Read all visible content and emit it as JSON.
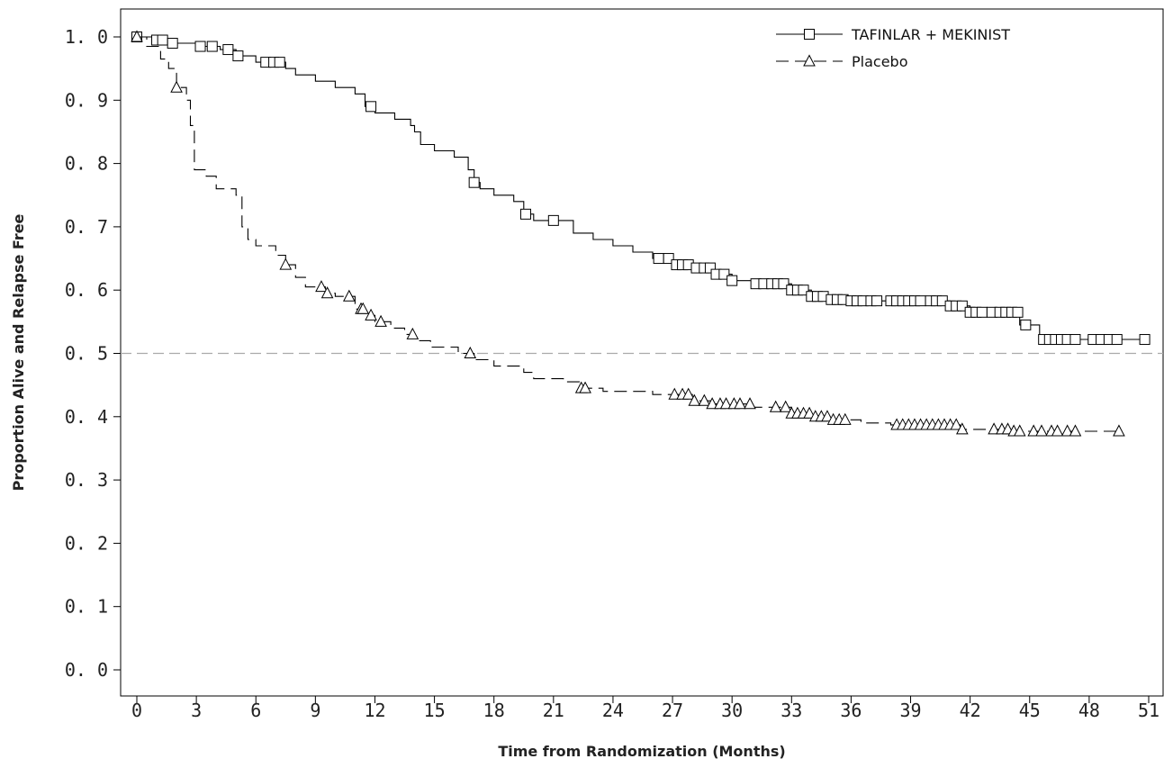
{
  "chart_data": {
    "type": "line",
    "subtype": "kaplan-meier",
    "title": "",
    "xlabel": "Time from Randomization (Months)",
    "ylabel": "Proportion Alive and Relapse Free",
    "xlim": [
      0,
      51
    ],
    "ylim": [
      0.0,
      1.0
    ],
    "x_ticks": [
      0,
      3,
      6,
      9,
      12,
      15,
      18,
      21,
      24,
      27,
      30,
      33,
      36,
      39,
      42,
      45,
      48,
      51
    ],
    "x_tick_labels": [
      "0",
      "3",
      "6",
      "9",
      "12",
      "15",
      "18",
      "21",
      "24",
      "27",
      "30",
      "33",
      "36",
      "39",
      "42",
      "45",
      "48",
      "51"
    ],
    "y_ticks": [
      0.0,
      0.1,
      0.2,
      0.3,
      0.4,
      0.5,
      0.6,
      0.7,
      0.8,
      0.9,
      1.0
    ],
    "y_tick_labels": [
      "0. 0",
      "0. 1",
      "0. 2",
      "0. 3",
      "0. 4",
      "0. 5",
      "0. 6",
      "0. 7",
      "0. 8",
      "0. 9",
      "1. 0"
    ],
    "grid": false,
    "reference_line": {
      "y": 0.5,
      "style": "dashed",
      "color": "#aaaaaa"
    },
    "legend_position": "top-right",
    "series": [
      {
        "name": "TAFINLAR + MEKINIST",
        "line_style": "solid",
        "marker": "square",
        "color": "#000000",
        "steps": [
          [
            0,
            1.0
          ],
          [
            0.8,
            0.995
          ],
          [
            1.8,
            0.99
          ],
          [
            3,
            0.985
          ],
          [
            4.2,
            0.98
          ],
          [
            5,
            0.97
          ],
          [
            6,
            0.96
          ],
          [
            7.5,
            0.95
          ],
          [
            8,
            0.94
          ],
          [
            9,
            0.93
          ],
          [
            10,
            0.92
          ],
          [
            11,
            0.91
          ],
          [
            11.5,
            0.89
          ],
          [
            12,
            0.88
          ],
          [
            13,
            0.87
          ],
          [
            13.8,
            0.86
          ],
          [
            14,
            0.85
          ],
          [
            14.3,
            0.83
          ],
          [
            15,
            0.82
          ],
          [
            16,
            0.81
          ],
          [
            16.7,
            0.79
          ],
          [
            17,
            0.77
          ],
          [
            17.3,
            0.76
          ],
          [
            18,
            0.75
          ],
          [
            19,
            0.74
          ],
          [
            19.5,
            0.72
          ],
          [
            20,
            0.71
          ],
          [
            21,
            0.71
          ],
          [
            22,
            0.69
          ],
          [
            23,
            0.68
          ],
          [
            24,
            0.67
          ],
          [
            25,
            0.66
          ],
          [
            26,
            0.65
          ],
          [
            27,
            0.64
          ],
          [
            28,
            0.635
          ],
          [
            29,
            0.625
          ],
          [
            30,
            0.615
          ],
          [
            31,
            0.61
          ],
          [
            33,
            0.6
          ],
          [
            34,
            0.59
          ],
          [
            35,
            0.585
          ],
          [
            36,
            0.583
          ],
          [
            41,
            0.575
          ],
          [
            42,
            0.565
          ],
          [
            44.3,
            0.565
          ],
          [
            44.5,
            0.545
          ],
          [
            45.5,
            0.522
          ],
          [
            51,
            0.522
          ]
        ],
        "censored": [
          0,
          1,
          1.3,
          1.8,
          3.2,
          3.8,
          4.6,
          5.1,
          6.5,
          6.9,
          7.2,
          11.8,
          17,
          19.6,
          21,
          26.3,
          26.8,
          27.2,
          27.5,
          27.8,
          28.2,
          28.6,
          28.9,
          29.2,
          29.6,
          30,
          31.2,
          31.6,
          32,
          32.3,
          32.6,
          33,
          33.3,
          33.6,
          34,
          34.3,
          34.6,
          35,
          35.3,
          35.6,
          36,
          36.3,
          36.6,
          37,
          37.3,
          38,
          38.3,
          38.6,
          38.9,
          39.2,
          39.5,
          40,
          40.3,
          40.6,
          41,
          41.3,
          41.6,
          42,
          42.3,
          42.6,
          43.1,
          43.5,
          43.8,
          44.1,
          44.4,
          44.8,
          45.7,
          46,
          46.3,
          46.6,
          46.9,
          47.3,
          48.2,
          48.6,
          49,
          49.4,
          50.8
        ]
      },
      {
        "name": "Placebo",
        "line_style": "dashed",
        "marker": "triangle",
        "color": "#000000",
        "steps": [
          [
            0,
            1.0
          ],
          [
            0.5,
            0.985
          ],
          [
            1.2,
            0.965
          ],
          [
            1.6,
            0.95
          ],
          [
            2,
            0.92
          ],
          [
            2.5,
            0.9
          ],
          [
            2.7,
            0.86
          ],
          [
            2.9,
            0.79
          ],
          [
            3.5,
            0.78
          ],
          [
            4,
            0.76
          ],
          [
            5,
            0.75
          ],
          [
            5.3,
            0.7
          ],
          [
            5.6,
            0.68
          ],
          [
            6,
            0.67
          ],
          [
            7,
            0.655
          ],
          [
            7.5,
            0.64
          ],
          [
            8,
            0.62
          ],
          [
            8.5,
            0.605
          ],
          [
            9.5,
            0.595
          ],
          [
            10,
            0.59
          ],
          [
            11,
            0.57
          ],
          [
            11.5,
            0.56
          ],
          [
            12,
            0.55
          ],
          [
            12.8,
            0.54
          ],
          [
            13.5,
            0.53
          ],
          [
            14,
            0.52
          ],
          [
            14.8,
            0.51
          ],
          [
            16.2,
            0.5
          ],
          [
            17,
            0.49
          ],
          [
            18,
            0.48
          ],
          [
            19.5,
            0.47
          ],
          [
            20,
            0.46
          ],
          [
            21.5,
            0.455
          ],
          [
            22.3,
            0.445
          ],
          [
            23.5,
            0.44
          ],
          [
            26,
            0.435
          ],
          [
            28,
            0.425
          ],
          [
            29,
            0.42
          ],
          [
            31,
            0.415
          ],
          [
            33,
            0.405
          ],
          [
            34,
            0.4
          ],
          [
            35,
            0.395
          ],
          [
            36.5,
            0.39
          ],
          [
            38,
            0.387
          ],
          [
            41.5,
            0.38
          ],
          [
            44,
            0.377
          ],
          [
            49.5,
            0.377
          ]
        ],
        "censored": [
          0,
          2,
          7.5,
          9.3,
          9.6,
          10.7,
          11.3,
          11.4,
          11.8,
          12.3,
          13.9,
          16.8,
          22.4,
          22.6,
          27.1,
          27.5,
          27.8,
          28.1,
          28.6,
          29,
          29.4,
          29.7,
          30.1,
          30.4,
          30.9,
          32.2,
          32.7,
          33,
          33.3,
          33.6,
          33.9,
          34.2,
          34.5,
          34.8,
          35.1,
          35.4,
          35.7,
          38.3,
          38.6,
          38.9,
          39.2,
          39.5,
          39.8,
          40.1,
          40.4,
          40.7,
          41,
          41.3,
          41.6,
          43.2,
          43.6,
          43.9,
          44.2,
          44.5,
          45.2,
          45.6,
          46.1,
          46.4,
          46.9,
          47.3,
          49.5
        ]
      }
    ]
  }
}
